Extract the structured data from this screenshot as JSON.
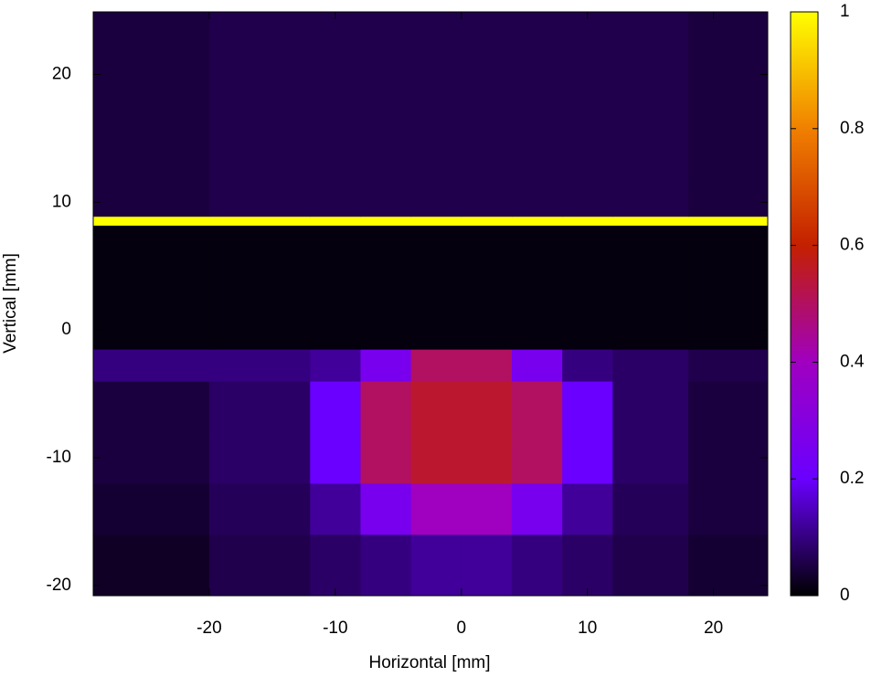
{
  "chart_data": {
    "type": "heatmap",
    "xlabel": "Horizontal [mm]",
    "ylabel": "Vertical [mm]",
    "xlim": [
      -29.2,
      24.3
    ],
    "ylim": [
      -20.8,
      24.9
    ],
    "xticks": [
      -20,
      -10,
      0,
      10,
      20
    ],
    "yticks": [
      -20,
      -10,
      0,
      10,
      20
    ],
    "x_edges": [
      -29.2,
      -20,
      -12,
      -8,
      -4,
      0,
      4,
      8,
      12,
      18,
      24.3
    ],
    "y_edges": [
      -20.8,
      -16,
      -12,
      -8,
      -4,
      -1.5,
      8.2,
      8.9,
      12,
      18,
      24.9
    ],
    "values": [
      [
        0.03,
        0.06,
        0.08,
        0.1,
        0.12,
        0.12,
        0.1,
        0.08,
        0.06,
        0.04
      ],
      [
        0.04,
        0.07,
        0.12,
        0.25,
        0.4,
        0.4,
        0.25,
        0.12,
        0.07,
        0.05
      ],
      [
        0.05,
        0.08,
        0.2,
        0.5,
        0.55,
        0.55,
        0.5,
        0.2,
        0.08,
        0.05
      ],
      [
        0.05,
        0.08,
        0.2,
        0.5,
        0.55,
        0.55,
        0.5,
        0.2,
        0.08,
        0.05
      ],
      [
        0.1,
        0.1,
        0.12,
        0.25,
        0.5,
        0.5,
        0.25,
        0.1,
        0.08,
        0.06
      ],
      [
        0.01,
        0.01,
        0.01,
        0.01,
        0.01,
        0.01,
        0.01,
        0.01,
        0.01,
        0.01
      ],
      [
        1,
        1,
        1,
        1,
        1,
        1,
        1,
        1,
        1,
        1
      ],
      [
        0.05,
        0.06,
        0.06,
        0.06,
        0.06,
        0.06,
        0.06,
        0.06,
        0.06,
        0.05
      ],
      [
        0.05,
        0.06,
        0.06,
        0.06,
        0.06,
        0.06,
        0.06,
        0.06,
        0.06,
        0.05
      ],
      [
        0.05,
        0.06,
        0.06,
        0.06,
        0.06,
        0.06,
        0.06,
        0.06,
        0.06,
        0.05
      ]
    ],
    "clim": [
      0,
      1
    ],
    "cticks": [
      0,
      0.2,
      0.4,
      0.6,
      0.8,
      1
    ],
    "colormap": [
      "#000000",
      "#6a00ff",
      "#a000c0",
      "#c42000",
      "#f08000",
      "#ffff00"
    ]
  }
}
